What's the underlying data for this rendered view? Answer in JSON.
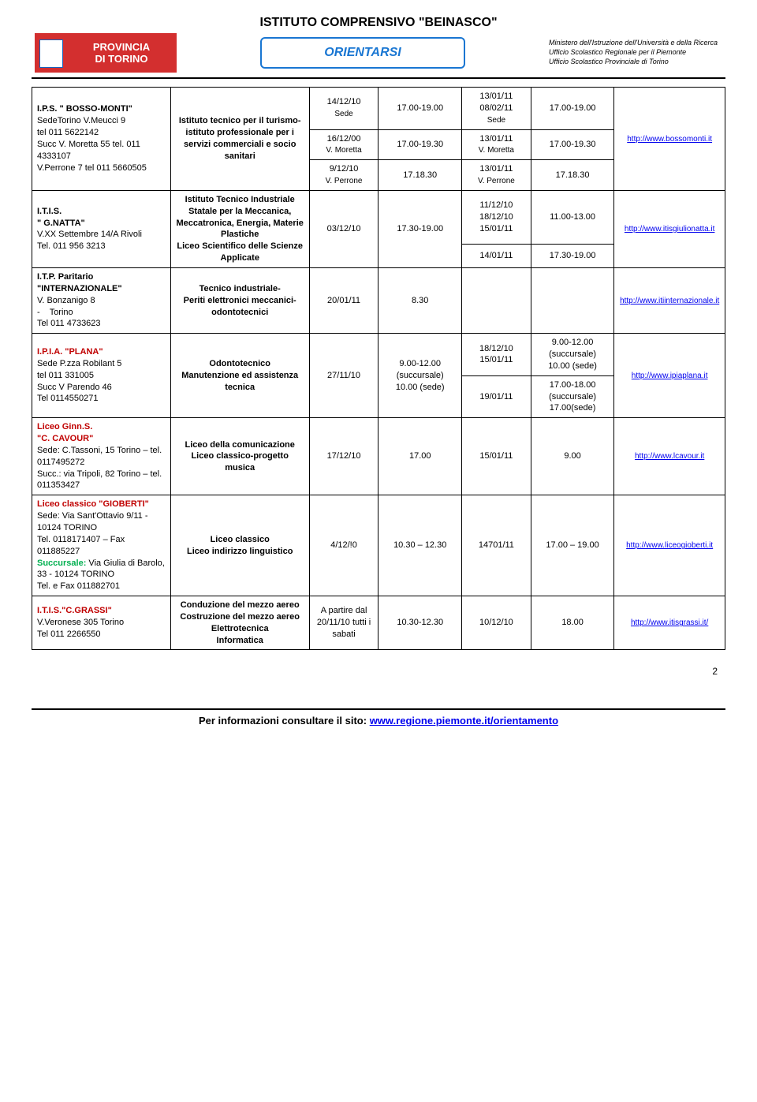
{
  "header": {
    "title": "ISTITUTO COMPRENSIVO \"BEINASCO\"",
    "logo_left_l1": "PROVINCIA",
    "logo_left_l2": "DI TORINO",
    "logo_center": "ORIENTARSI",
    "logo_right_l1": "Ministero dell'Istruzione dell'Università e della Ricerca",
    "logo_right_l2": "Ufficio Scolastico Regionale per il Piemonte",
    "logo_right_l3": "Ufficio Scolastico Provinciale di Torino"
  },
  "rows": [
    {
      "school_html": "<span class='school-name'>I.P.S. \" BOSSO-MONTI\"</span><br>SedeTorino V.Meucci 9<br>tel 011 5622142<br>Succ V. Moretta 55 tel. 011 4333107<br>V.Perrone 7 tel 011 5660505",
      "desc": "Istituto tecnico per il turismo-<br>istituto professionale per i servizi commerciali e socio sanitari",
      "dates": [
        {
          "c3": "14/12/10<br><span class='tiny'>Sede</span>",
          "c4": "17.00-19.00",
          "c5": "13/01/11<br>08/02/11<br><span class='tiny'>Sede</span>",
          "c6": "17.00-19.00"
        },
        {
          "c3": "16/12/00<br><span class='tiny'>V. Moretta</span>",
          "c4": "17.00-19.30",
          "c5": "13/01/11<br><span class='tiny'>V. Moretta</span>",
          "c6": "17.00-19.30"
        },
        {
          "c3": "9/12/10<br><span class='tiny'>V. Perrone</span>",
          "c4": "17.18.30",
          "c5": "13/01/11<br><span class='tiny'>V. Perrone</span>",
          "c6": "17.18.30"
        }
      ],
      "link": "http://www.bossomonti.it"
    },
    {
      "school_html": "<span class='school-name'>I.T.I.S.<br>\" G.NATTA\"</span><br>V.XX Settembre 14/A Rivoli<br>Tel. 011 956 3213",
      "desc": "Istituto Tecnico Industriale Statale per la Meccanica, Meccatronica, Energia, Materie Plastiche<br>Liceo Scientifico delle Scienze Applicate",
      "dates": [
        {
          "c3": "03/12/10",
          "c4": "17.30-19.00",
          "c5": "11/12/10<br>18/12/10<br>15/01/11",
          "c6": "11.00-13.00",
          "rs": 2
        },
        {
          "c5": "14/01/11",
          "c6": "17.30-19.00"
        }
      ],
      "link": "http://www.itisgiulionatta.it"
    },
    {
      "school_html": "<span class='school-name'>I.T.P. Paritario \"INTERNAZIONALE\"</span><br>V. Bonzanigo 8<br>- &nbsp;&nbsp; Torino<br>Tel 011 4733623",
      "desc": "Tecnico industriale-<br>Periti elettronici meccanici-<br>odontotecnici",
      "dates": [
        {
          "c3": "20/01/11",
          "c4": "8.30",
          "c5": "",
          "c6": ""
        }
      ],
      "link": "http://www.itiinternazionale.it"
    },
    {
      "school_html": "<span class='school-name red'>I.P.I.A. \"PLANA\"</span><br>Sede P.zza Robilant 5<br>tel 011 331005<br>Succ V Parendo 46<br>Tel 0114550271",
      "desc": "Odontotecnico<br>Manutenzione ed assistenza tecnica",
      "dates": [
        {
          "c3": "27/11/10",
          "c4": "9.00-12.00 (succursale)<br>10.00 (sede)",
          "c5": "18/12/10<br>15/01/11",
          "c6": "9.00-12.00 (succursale)<br>10.00 (sede)",
          "rs": 2
        },
        {
          "c5": "19/01/11",
          "c6": "17.00-18.00 (succursale)<br>17.00(sede)"
        }
      ],
      "link": "http://www.ipiaplana.it"
    },
    {
      "school_html": "<span class='school-name red'>Liceo Ginn.S.<br>\"C. CAVOUR\"</span><br>Sede: C.Tassoni, 15 Torino – tel. 0117495272<br>Succ.: via Tripoli, 82 Torino – tel. 011353427",
      "desc": "Liceo della comunicazione<br>Liceo classico-progetto musica",
      "dates": [
        {
          "c3": "17/12/10",
          "c4": "17.00",
          "c5": "15/01/11",
          "c6": "9.00"
        }
      ],
      "link": "http://www.lcavour.it"
    },
    {
      "school_html": "<span class='school-name red'>Liceo classico \"GIOBERTI\"</span><br>Sede: Via Sant'Ottavio 9/11 - 10124 TORINO<br>Tel. 0118171407 – Fax 011885227<br><span class='green'>Succursale:</span> Via Giulia di Barolo, 33 - 10124 TORINO<br>Tel. e Fax 011882701",
      "desc": "Liceo classico<br>Liceo indirizzo linguistico",
      "dates": [
        {
          "c3": "4/12/!0",
          "c4": "10.30 – 12.30",
          "c5": "14701/11",
          "c6": "17.00 – 19.00"
        }
      ],
      "link": "http://www.liceogioberti.it"
    },
    {
      "school_html": "<span class='school-name red'>I.T.I.S.\"C.GRASSI\"</span><br>V.Veronese 305 Torino<br>Tel 011 2266550",
      "desc": "Conduzione del mezzo aereo<br>Costruzione del mezzo aereo<br>Elettrotecnica<br>Informatica",
      "dates": [
        {
          "c3": "A partire dal 20/11/10 tutti i sabati",
          "c4": "10.30-12.30",
          "c5": "10/12/10",
          "c6": "18.00"
        }
      ],
      "link": "http://www.itisgrassi.it/"
    }
  ],
  "footer": {
    "label": "Per informazioni consultare il sito:",
    "url": "www.regione.piemonte.it/orientamento"
  },
  "page_number": "2"
}
